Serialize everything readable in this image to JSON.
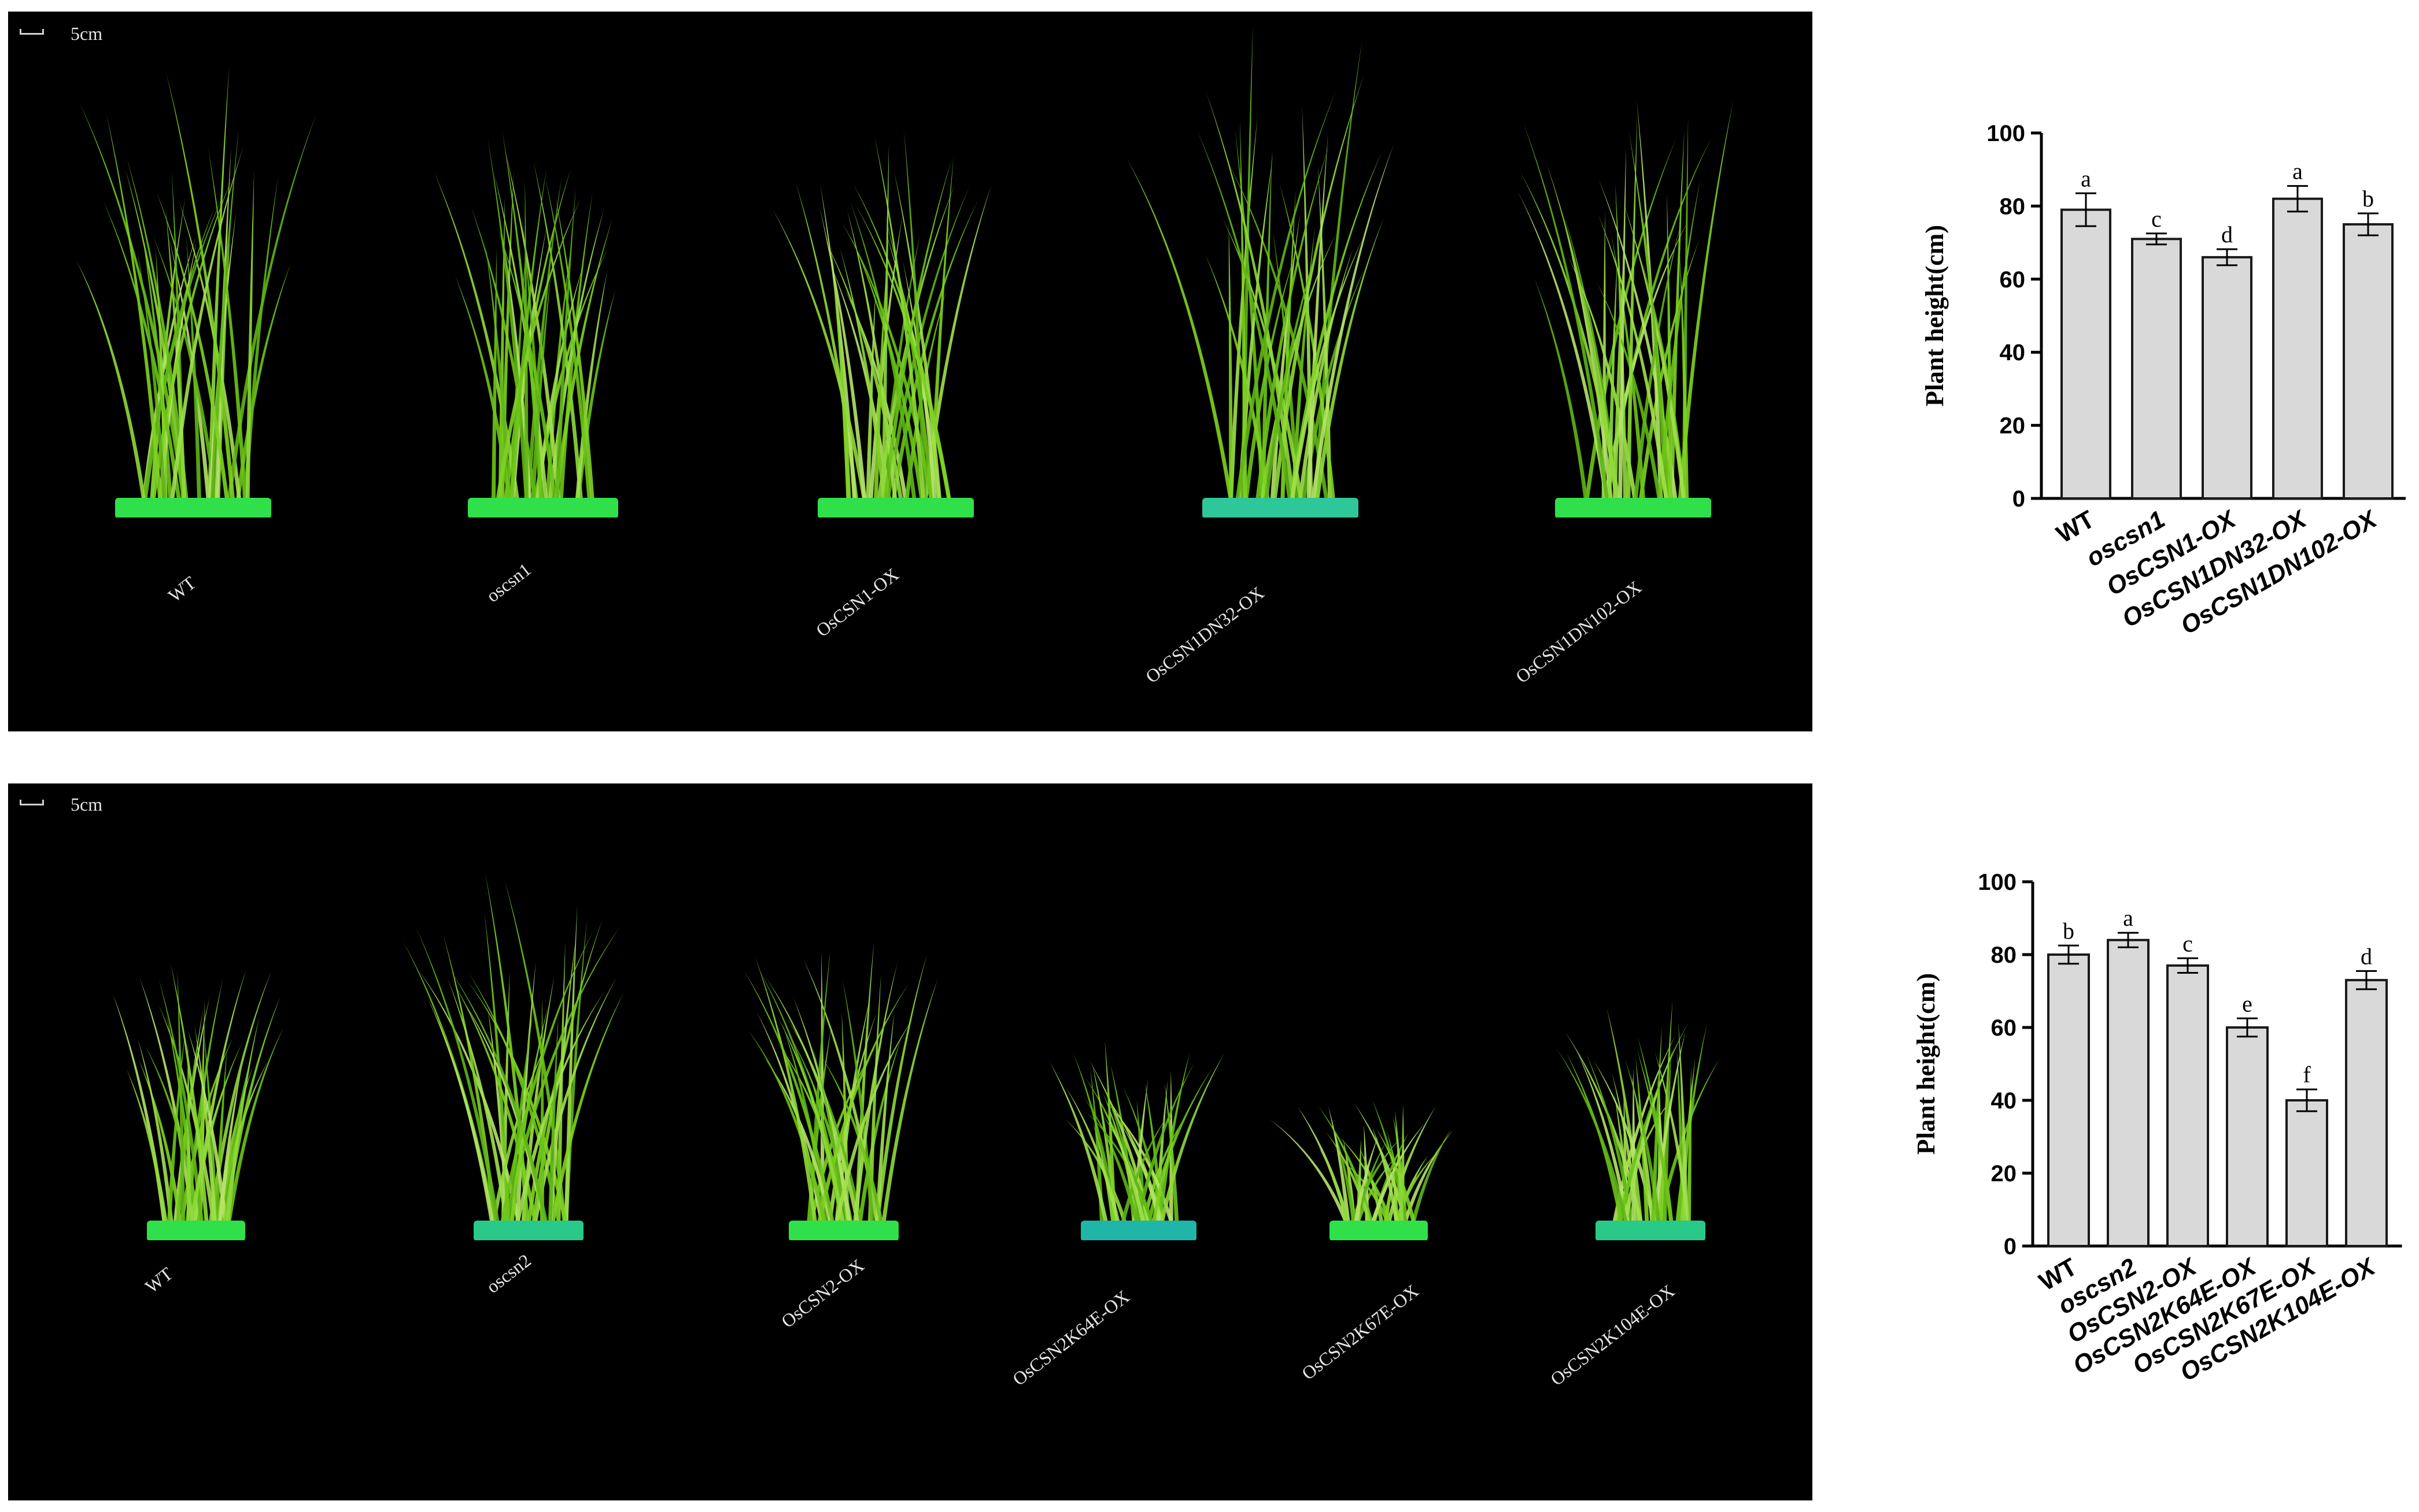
{
  "photos": [
    {
      "scale_label": "5cm",
      "genotypes": [
        "WT",
        "oscsn1",
        "OsCSN1-OX",
        "OsCSN1DN32-OX",
        "OsCSN1DN102-OX"
      ]
    },
    {
      "scale_label": "5cm",
      "genotypes": [
        "WT",
        "oscsn2",
        "OsCSN2-OX",
        "OsCSN2K64E-OX",
        "OsCSN2K67E-OX",
        "OsCSN2K104E-OX"
      ]
    }
  ],
  "chart_data": [
    {
      "type": "bar",
      "categories": [
        "WT",
        "oscsn1",
        "OsCSN1-OX",
        "OsCSN1DN32-OX",
        "OsCSN1DN102-OX"
      ],
      "italic_categories": [
        false,
        true,
        true,
        true,
        true
      ],
      "values": [
        79,
        71,
        66,
        82,
        75
      ],
      "errors": [
        4.5,
        1.5,
        2.2,
        3.5,
        3.0
      ],
      "significance_letters": [
        "a",
        "c",
        "d",
        "a",
        "b"
      ],
      "ylabel": "Plant height(cm)",
      "ylim": [
        0,
        100
      ],
      "yticks": [
        0,
        20,
        40,
        60,
        80,
        100
      ],
      "bar_color": "#d9d9d9",
      "grid": false
    },
    {
      "type": "bar",
      "categories": [
        "WT",
        "oscsn2",
        "OsCSN2-OX",
        "OsCSN2K64E-OX",
        "OsCSN2K67E-OX",
        "OsCSN2K104E-OX"
      ],
      "italic_categories": [
        false,
        true,
        true,
        true,
        true,
        true
      ],
      "values": [
        80,
        84,
        77,
        60,
        40,
        73
      ],
      "errors": [
        2.5,
        2.0,
        2.0,
        2.5,
        3.0,
        2.5
      ],
      "significance_letters": [
        "b",
        "a",
        "c",
        "e",
        "f",
        "d"
      ],
      "ylabel": "Plant height(cm)",
      "ylim": [
        0,
        100
      ],
      "yticks": [
        0,
        20,
        40,
        60,
        80,
        100
      ],
      "bar_color": "#d9d9d9",
      "grid": false
    }
  ]
}
